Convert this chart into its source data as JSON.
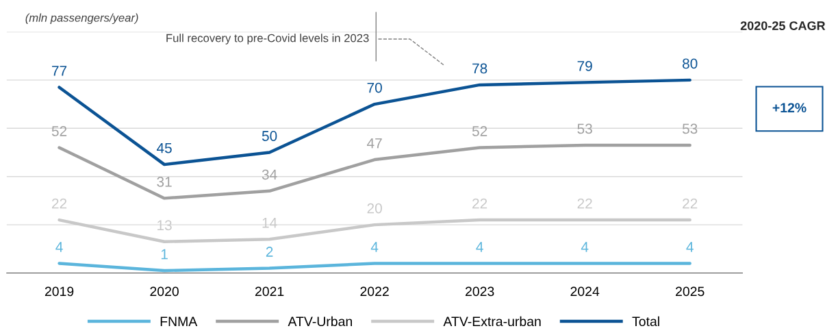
{
  "chart_data": {
    "type": "line",
    "ylabel": "(mln passengers/year)",
    "categories": [
      "2019",
      "2020",
      "2021",
      "2022",
      "2023",
      "2024",
      "2025"
    ],
    "series": [
      {
        "name": "FNMA",
        "color": "#5bb5dc",
        "values": [
          4,
          1,
          2,
          4,
          4,
          4,
          4
        ]
      },
      {
        "name": "ATV-Urban",
        "color": "#a0a0a0",
        "values": [
          52,
          31,
          34,
          47,
          52,
          53,
          53
        ]
      },
      {
        "name": "ATV-Extra-urban",
        "color": "#c8c8c8",
        "values": [
          22,
          13,
          14,
          20,
          22,
          22,
          22
        ]
      },
      {
        "name": "Total",
        "color": "#0b5394",
        "values": [
          77,
          45,
          50,
          70,
          78,
          79,
          80
        ]
      }
    ],
    "ylim": [
      0,
      100
    ],
    "yticks": [
      {
        "value": 20,
        "label": null
      },
      {
        "value": 40,
        "label": null
      },
      {
        "value": 60,
        "label": null
      },
      {
        "value": 80,
        "label": null
      },
      {
        "value": 100,
        "label": null
      }
    ],
    "tick_labels": "x",
    "grid": "y",
    "legend": "bottom",
    "data_labels": true,
    "marker": "none",
    "line_style": "solid",
    "annotations": [
      "Full recovery to pre-Covid levels in 2023",
      "2020-25 CAGR",
      "+12%"
    ]
  }
}
